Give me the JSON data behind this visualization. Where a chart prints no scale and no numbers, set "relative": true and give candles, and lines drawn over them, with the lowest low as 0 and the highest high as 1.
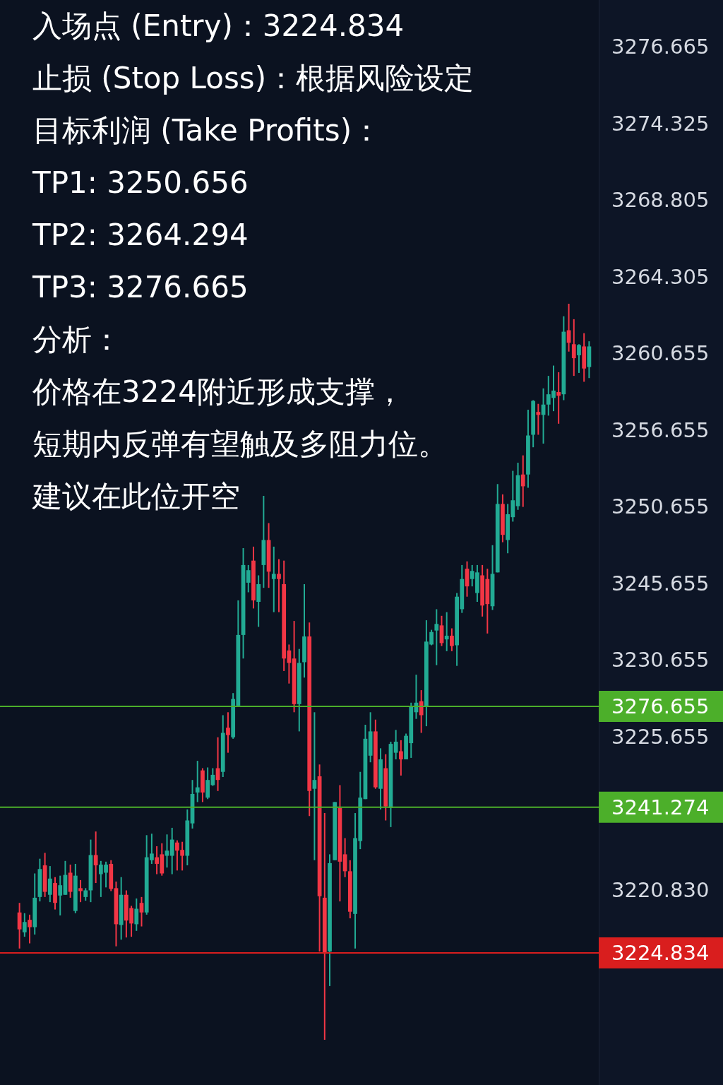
{
  "chart_data": {
    "type": "candlestick",
    "relative": true,
    "title": "入场点 (Entry)：3224.834",
    "categories": [
      null,
      null,
      null,
      null,
      null,
      null,
      null,
      null,
      null,
      null,
      null,
      null,
      null,
      null,
      null,
      null,
      null,
      null,
      null,
      null,
      null,
      null,
      null,
      null,
      null,
      null,
      null,
      null,
      null,
      null,
      null,
      null,
      null,
      null,
      null,
      null,
      null,
      null,
      null,
      null,
      null,
      null,
      null,
      null,
      null,
      null,
      null,
      null,
      null,
      null,
      null,
      null,
      null,
      null,
      null,
      null,
      null,
      null,
      null,
      null,
      null,
      null,
      null,
      null,
      null,
      null,
      null,
      null,
      null,
      null,
      null,
      null,
      null,
      null,
      null,
      null,
      null,
      null,
      null,
      null,
      null,
      null,
      null,
      null,
      null,
      null,
      null,
      null,
      null,
      null,
      null,
      null,
      null,
      null,
      null,
      null,
      null,
      null,
      null,
      null,
      null,
      null,
      null,
      null,
      null,
      null,
      null,
      null,
      null,
      null,
      null,
      null,
      null
    ],
    "ohlc": [
      [
        0.173,
        0.186,
        0.124,
        0.15
      ],
      [
        0.146,
        0.172,
        0.14,
        0.16
      ],
      [
        0.163,
        0.17,
        0.131,
        0.153
      ],
      [
        0.153,
        0.226,
        0.143,
        0.193
      ],
      [
        0.194,
        0.246,
        0.188,
        0.232
      ],
      [
        0.237,
        0.254,
        0.194,
        0.201
      ],
      [
        0.197,
        0.236,
        0.187,
        0.219
      ],
      [
        0.213,
        0.221,
        0.177,
        0.186
      ],
      [
        0.196,
        0.223,
        0.169,
        0.21
      ],
      [
        0.197,
        0.243,
        0.197,
        0.224
      ],
      [
        0.227,
        0.238,
        0.193,
        0.201
      ],
      [
        0.175,
        0.239,
        0.172,
        0.223
      ],
      [
        0.206,
        0.217,
        0.187,
        0.202
      ],
      [
        0.194,
        0.206,
        0.189,
        0.203
      ],
      [
        0.203,
        0.272,
        0.187,
        0.251
      ],
      [
        0.251,
        0.283,
        0.213,
        0.237
      ],
      [
        0.225,
        0.243,
        0.194,
        0.238
      ],
      [
        0.227,
        0.242,
        0.207,
        0.238
      ],
      [
        0.239,
        0.244,
        0.202,
        0.205
      ],
      [
        0.206,
        0.215,
        0.127,
        0.157
      ],
      [
        0.156,
        0.221,
        0.136,
        0.197
      ],
      [
        0.197,
        0.203,
        0.139,
        0.162
      ],
      [
        0.179,
        0.182,
        0.14,
        0.158
      ],
      [
        0.157,
        0.192,
        0.148,
        0.178
      ],
      [
        0.186,
        0.194,
        0.154,
        0.173
      ],
      [
        0.173,
        0.278,
        0.17,
        0.248
      ],
      [
        0.244,
        0.28,
        0.239,
        0.253
      ],
      [
        0.248,
        0.263,
        0.225,
        0.239
      ],
      [
        0.252,
        0.267,
        0.223,
        0.226
      ],
      [
        0.25,
        0.279,
        0.234,
        0.257
      ],
      [
        0.25,
        0.288,
        0.225,
        0.272
      ],
      [
        0.268,
        0.271,
        0.23,
        0.257
      ],
      [
        0.258,
        0.269,
        0.23,
        0.25
      ],
      [
        0.25,
        0.313,
        0.237,
        0.298
      ],
      [
        0.294,
        0.353,
        0.287,
        0.334
      ],
      [
        0.336,
        0.379,
        0.323,
        0.343
      ],
      [
        0.366,
        0.369,
        0.323,
        0.336
      ],
      [
        0.329,
        0.37,
        0.327,
        0.353
      ],
      [
        0.346,
        0.369,
        0.345,
        0.36
      ],
      [
        0.369,
        0.411,
        0.338,
        0.353
      ],
      [
        0.364,
        0.441,
        0.357,
        0.417
      ],
      [
        0.424,
        0.445,
        0.39,
        0.414
      ],
      [
        0.411,
        0.471,
        0.409,
        0.463
      ],
      [
        0.454,
        0.597,
        0.454,
        0.55
      ],
      [
        0.55,
        0.668,
        0.518,
        0.645
      ],
      [
        0.621,
        0.645,
        0.608,
        0.638
      ],
      [
        0.651,
        0.67,
        0.586,
        0.597
      ],
      [
        0.595,
        0.631,
        0.561,
        0.619
      ],
      [
        0.645,
        0.739,
        0.614,
        0.679
      ],
      [
        0.679,
        0.702,
        0.614,
        0.636
      ],
      [
        0.626,
        0.67,
        0.581,
        0.633
      ],
      [
        0.633,
        0.653,
        0.581,
        0.626
      ],
      [
        0.619,
        0.651,
        0.501,
        0.518
      ],
      [
        0.529,
        0.537,
        0.484,
        0.512
      ],
      [
        0.518,
        0.569,
        0.445,
        0.456
      ],
      [
        0.456,
        0.531,
        0.419,
        0.512
      ],
      [
        0.513,
        0.619,
        0.492,
        0.548
      ],
      [
        0.548,
        0.567,
        0.304,
        0.338
      ],
      [
        0.341,
        0.445,
        0.244,
        0.353
      ],
      [
        0.358,
        0.374,
        0.12,
        0.195
      ],
      [
        0.193,
        0.308,
        0,
        0.117
      ],
      [
        0.12,
        0.252,
        0.073,
        0.24
      ],
      [
        0.244,
        0.323,
        0.244,
        0.323
      ],
      [
        0.315,
        0.346,
        0.188,
        0.242
      ],
      [
        0.252,
        0.274,
        0.221,
        0.229
      ],
      [
        0.229,
        0.244,
        0.165,
        0.174
      ],
      [
        0.171,
        0.308,
        0.124,
        0.274
      ],
      [
        0.27,
        0.364,
        0.259,
        0.329
      ],
      [
        0.327,
        0.428,
        0.327,
        0.409
      ],
      [
        0.386,
        0.445,
        0.377,
        0.419
      ],
      [
        0.419,
        0.435,
        0.341,
        0.343
      ],
      [
        0.341,
        0.396,
        0.313,
        0.381
      ],
      [
        0.369,
        0.388,
        0.298,
        0.317
      ],
      [
        0.315,
        0.405,
        0.289,
        0.402
      ],
      [
        0.39,
        0.421,
        0.381,
        0.405
      ],
      [
        0.392,
        0.407,
        0.359,
        0.381
      ],
      [
        0.381,
        0.416,
        0.381,
        0.413
      ],
      [
        0.403,
        0.458,
        0.383,
        0.453
      ],
      [
        0.445,
        0.496,
        0.436,
        0.458
      ],
      [
        0.46,
        0.475,
        0.417,
        0.441
      ],
      [
        0.453,
        0.57,
        0.426,
        0.541
      ],
      [
        0.537,
        0.557,
        0.536,
        0.554
      ],
      [
        0.556,
        0.585,
        0.509,
        0.565
      ],
      [
        0.563,
        0.576,
        0.535,
        0.539
      ],
      [
        0.544,
        0.581,
        0.528,
        0.549
      ],
      [
        0.549,
        0.559,
        0.528,
        0.535
      ],
      [
        0.536,
        0.607,
        0.508,
        0.602
      ],
      [
        0.585,
        0.645,
        0.58,
        0.626
      ],
      [
        0.64,
        0.65,
        0.602,
        0.616
      ],
      [
        0.626,
        0.645,
        0.616,
        0.637
      ],
      [
        0.607,
        0.645,
        0.595,
        0.635
      ],
      [
        0.631,
        0.645,
        0.575,
        0.59
      ],
      [
        0.626,
        0.64,
        0.552,
        0.592
      ],
      [
        0.589,
        0.672,
        0.584,
        0.633
      ],
      [
        0.635,
        0.755,
        0.635,
        0.728
      ],
      [
        0.728,
        0.741,
        0.676,
        0.686
      ],
      [
        0.679,
        0.728,
        0.661,
        0.714
      ],
      [
        0.71,
        0.773,
        0.704,
        0.733
      ],
      [
        0.725,
        0.784,
        0.72,
        0.767
      ],
      [
        0.768,
        0.794,
        0.724,
        0.752
      ],
      [
        0.768,
        0.856,
        0.75,
        0.821
      ],
      [
        0.822,
        0.869,
        0.805,
        0.868
      ],
      [
        0.853,
        0.864,
        0.822,
        0.849
      ],
      [
        0.849,
        0.885,
        0.81,
        0.863
      ],
      [
        0.863,
        0.902,
        0.848,
        0.877
      ],
      [
        0.872,
        0.916,
        0.854,
        0.882
      ],
      [
        0.88,
        0.907,
        0.837,
        0.875
      ],
      [
        0.877,
        0.983,
        0.869,
        0.962
      ],
      [
        0.964,
        1,
        0.935,
        0.947
      ],
      [
        0.945,
        0.979,
        0.902,
        0.926
      ],
      [
        0.93,
        0.945,
        0.906,
        0.944
      ],
      [
        0.942,
        0.96,
        0.894,
        0.912
      ],
      [
        0.914,
        0.949,
        0.899,
        0.942
      ]
    ],
    "colors": [
      "#f23645",
      "#22ab94",
      "#f23645",
      "#22ab94",
      "#22ab94",
      "#f23645",
      "#22ab94",
      "#f23645",
      "#22ab94",
      "#22ab94",
      "#f23645",
      "#22ab94",
      "#f23645",
      "#22ab94",
      "#22ab94",
      "#f23645",
      "#22ab94",
      "#22ab94",
      "#f23645",
      "#f23645",
      "#22ab94",
      "#f23645",
      "#f23645",
      "#22ab94",
      "#f23645",
      "#22ab94",
      "#22ab94",
      "#f23645",
      "#f23645",
      "#22ab94",
      "#22ab94",
      "#f23645",
      "#f23645",
      "#22ab94",
      "#22ab94",
      "#22ab94",
      "#f23645",
      "#22ab94",
      "#22ab94",
      "#f23645",
      "#22ab94",
      "#f23645",
      "#22ab94",
      "#22ab94",
      "#22ab94",
      "#22ab94",
      "#f23645",
      "#22ab94",
      "#22ab94",
      "#f23645",
      "#22ab94",
      "#f23645",
      "#f23645",
      "#f23645",
      "#f23645",
      "#22ab94",
      "#22ab94",
      "#f23645",
      "#22ab94",
      "#f23645",
      "#f23645",
      "#22ab94",
      "#22ab94",
      "#f23645",
      "#f23645",
      "#f23645",
      "#22ab94",
      "#22ab94",
      "#22ab94",
      "#22ab94",
      "#f23645",
      "#22ab94",
      "#f23645",
      "#22ab94",
      "#22ab94",
      "#f23645",
      "#22ab94",
      "#22ab94",
      "#22ab94",
      "#f23645",
      "#22ab94",
      "#22ab94",
      "#22ab94",
      "#f23645",
      "#22ab94",
      "#f23645",
      "#22ab94",
      "#22ab94",
      "#f23645",
      "#22ab94",
      "#22ab94",
      "#f23645",
      "#f23645",
      "#22ab94",
      "#22ab94",
      "#f23645",
      "#22ab94",
      "#22ab94",
      "#22ab94",
      "#f23645",
      "#22ab94",
      "#22ab94",
      "#f23645",
      "#22ab94",
      "#22ab94",
      "#22ab94",
      "#f23645",
      "#22ab94",
      "#f23645",
      "#f23645",
      "#22ab94",
      "#f23645",
      "#22ab94"
    ],
    "ref_lines": [
      {
        "axis": "y",
        "value": 0.453,
        "color": "#4caf2a"
      },
      {
        "axis": "y",
        "value": 0.316,
        "color": "#4caf2a"
      },
      {
        "axis": "y",
        "value": 0.118,
        "color": "#d91e1e"
      }
    ],
    "annotations": [
      {
        "text": "止损 (Stop Loss)：根据风险设定"
      },
      {
        "text": "目标利润 (Take Profits)："
      },
      {
        "text": "TP1: 3250.656"
      },
      {
        "text": "TP2: 3264.294"
      },
      {
        "text": "TP3: 3276.665"
      },
      {
        "text": "分析："
      },
      {
        "text": "价格在3224附近形成支撑，"
      },
      {
        "text": "短期内反弹有望触及多阻力位。"
      },
      {
        "text": "建议在此位开空"
      },
      "3276.665",
      "3274.325",
      "3268.805",
      "3264.305",
      "3260.655",
      "3256.655",
      "3250.655",
      "3245.655",
      "3230.655",
      "3276.655",
      "3225.655",
      "3241.274",
      "3220.830",
      "3224.834"
    ]
  }
}
